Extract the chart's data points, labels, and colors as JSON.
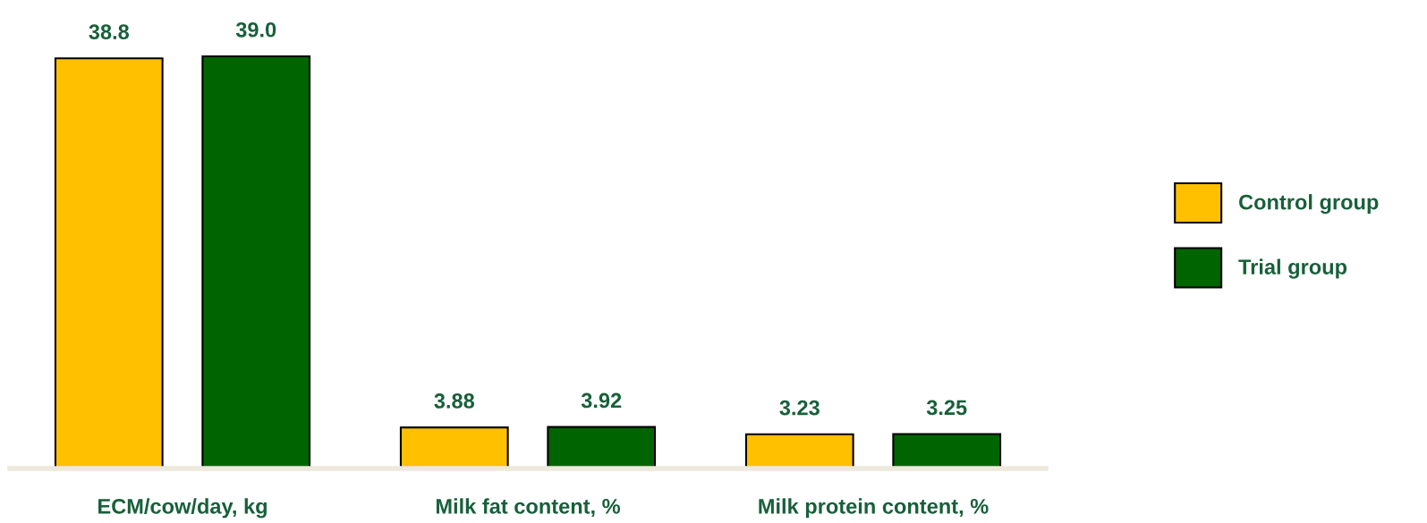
{
  "chart_data": {
    "type": "bar",
    "categories": [
      "ECM/cow/day, kg",
      "Milk fat content, %",
      "Milk protein content, %"
    ],
    "series": [
      {
        "name": "Control group",
        "color": "#ffc000",
        "values": [
          38.8,
          3.88,
          3.23
        ],
        "value_labels": [
          "38.8",
          "3.88",
          "3.23"
        ]
      },
      {
        "name": "Trial group",
        "color": "#006400",
        "values": [
          39.0,
          3.92,
          3.25
        ],
        "value_labels": [
          "39.0",
          "3.92",
          "3.25"
        ]
      }
    ],
    "tick_labels": "x",
    "grid": false,
    "legend": "right"
  }
}
